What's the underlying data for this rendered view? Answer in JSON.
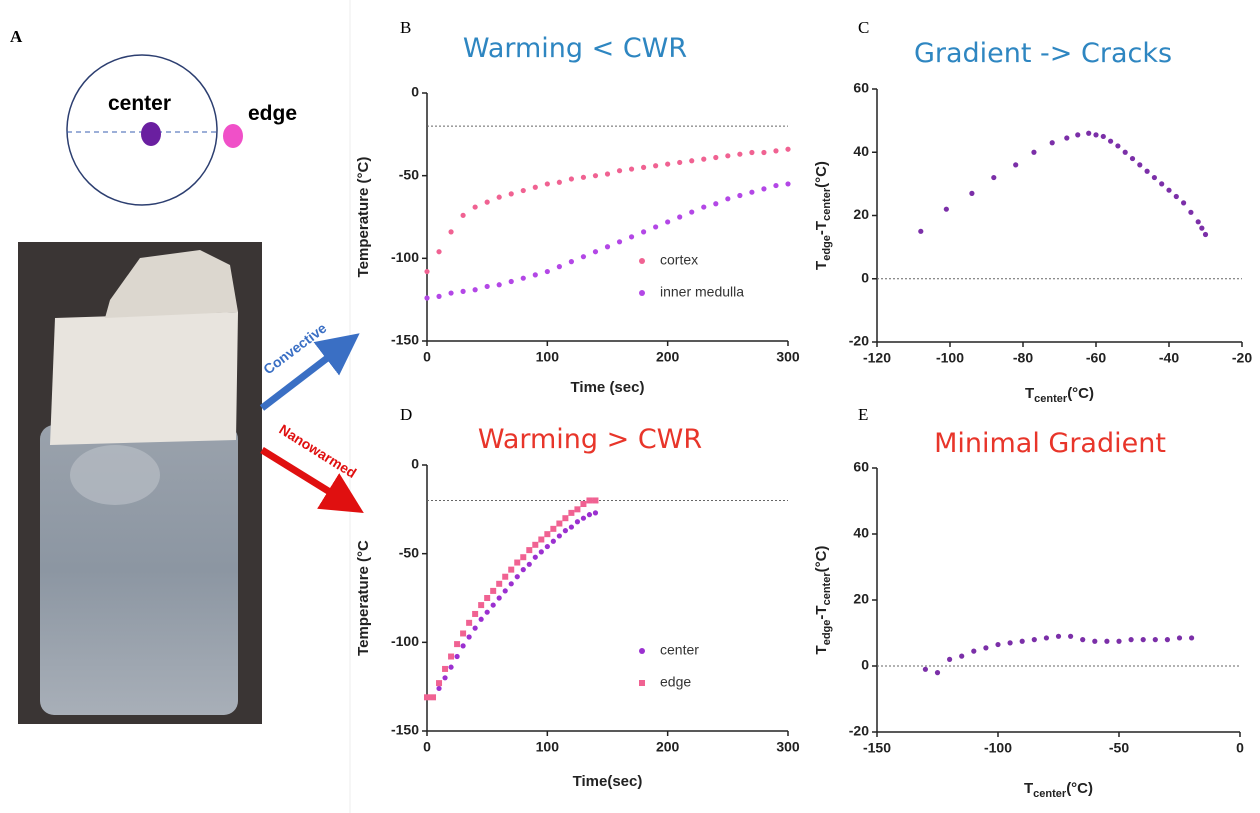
{
  "panel_a": {
    "label": "A",
    "center": "center",
    "edge": "edge",
    "convective": "Convective",
    "nanowarmed": "Nanowarmed"
  },
  "chart_data": [
    {
      "type": "scatter",
      "label": "B",
      "title": "Warming < CWR",
      "title_color": "#2e86c1",
      "xlabel": "Time (sec)",
      "ylabel": "Temperature (°C)",
      "xlim": [
        0,
        300
      ],
      "ylim": [
        -150,
        0
      ],
      "xticks": [
        0,
        100,
        200,
        300
      ],
      "yticks": [
        0,
        -50,
        -100,
        -150
      ],
      "hline": -20,
      "legend": "lower right",
      "x": [
        0,
        10,
        20,
        30,
        40,
        50,
        60,
        70,
        80,
        90,
        100,
        110,
        120,
        130,
        140,
        150,
        160,
        170,
        180,
        190,
        200,
        210,
        220,
        230,
        240,
        250,
        260,
        270,
        280,
        290,
        300
      ],
      "series": [
        {
          "name": "cortex",
          "color": "#f06292",
          "marker": "circle",
          "values": [
            -108,
            -96,
            -84,
            -74,
            -69,
            -66,
            -63,
            -61,
            -59,
            -57,
            -55,
            -54,
            -52,
            -51,
            -50,
            -49,
            -47,
            -46,
            -45,
            -44,
            -43,
            -42,
            -41,
            -40,
            -39,
            -38,
            -37,
            -36,
            -36,
            -35,
            -34
          ]
        },
        {
          "name": "inner medulla",
          "color": "#b347e6",
          "marker": "circle",
          "values": [
            -124,
            -123,
            -121,
            -120,
            -119,
            -117,
            -116,
            -114,
            -112,
            -110,
            -108,
            -105,
            -102,
            -99,
            -96,
            -93,
            -90,
            -87,
            -84,
            -81,
            -78,
            -75,
            -72,
            -69,
            -67,
            -64,
            -62,
            -60,
            -58,
            -56,
            -55
          ]
        }
      ]
    },
    {
      "type": "scatter",
      "label": "C",
      "title": "Gradient -> Cracks",
      "title_color": "#2e86c1",
      "xlabel": [
        "T",
        "center",
        "(°C)"
      ],
      "ylabel": [
        "T",
        "edge",
        "-T",
        "center",
        "(°C)"
      ],
      "xlim": [
        -120,
        -20
      ],
      "ylim": [
        -20,
        60
      ],
      "xticks": [
        -120,
        -100,
        -80,
        -60,
        -40,
        -20
      ],
      "yticks": [
        -20,
        0,
        20,
        40,
        60
      ],
      "hline": 0,
      "x": [
        -108,
        -101,
        -94,
        -88,
        -82,
        -77,
        -72,
        -68,
        -65,
        -62,
        -60,
        -58,
        -56,
        -54,
        -52,
        -50,
        -48,
        -46,
        -44,
        -42,
        -40,
        -38,
        -36,
        -34,
        -32,
        -31,
        -30
      ],
      "series": [
        {
          "name": null,
          "color": "#7b2fa8",
          "marker": "circle",
          "values": [
            15,
            22,
            27,
            32,
            36,
            40,
            43,
            44.5,
            45.5,
            46,
            45.5,
            45,
            43.5,
            42,
            40,
            38,
            36,
            34,
            32,
            30,
            28,
            26,
            24,
            21,
            18,
            16,
            14
          ]
        }
      ]
    },
    {
      "type": "scatter",
      "label": "D",
      "title": "Warming > CWR",
      "title_color": "#e8352a",
      "xlabel": "Time(sec)",
      "ylabel": "Temperature (°C",
      "xlim": [
        0,
        300
      ],
      "ylim": [
        -150,
        0
      ],
      "xticks": [
        0,
        100,
        200,
        300
      ],
      "yticks": [
        0,
        -50,
        -100,
        -150
      ],
      "hline": -20,
      "legend": "lower right",
      "x": [
        0,
        5,
        10,
        15,
        20,
        25,
        30,
        35,
        40,
        45,
        50,
        55,
        60,
        65,
        70,
        75,
        80,
        85,
        90,
        95,
        100,
        105,
        110,
        115,
        120,
        125,
        130,
        135,
        140
      ],
      "series": [
        {
          "name": "center",
          "color": "#9b30d0",
          "marker": "circle",
          "values": [
            -131,
            -131,
            -126,
            -120,
            -114,
            -108,
            -102,
            -97,
            -92,
            -87,
            -83,
            -79,
            -75,
            -71,
            -67,
            -63,
            -59,
            -56,
            -52,
            -49,
            -46,
            -43,
            -40,
            -37,
            -35,
            -32,
            -30,
            -28,
            -27
          ]
        },
        {
          "name": "edge",
          "color": "#f06292",
          "marker": "square",
          "values": [
            -131,
            -131,
            -123,
            -115,
            -108,
            -101,
            -95,
            -89,
            -84,
            -79,
            -75,
            -71,
            -67,
            -63,
            -59,
            -55,
            -52,
            -48,
            -45,
            -42,
            -39,
            -36,
            -33,
            -30,
            -27,
            -25,
            -22,
            -20,
            -20
          ]
        }
      ]
    },
    {
      "type": "scatter",
      "label": "E",
      "title": "Minimal Gradient",
      "title_color": "#e8352a",
      "xlabel": [
        "T",
        "center",
        "(°C)"
      ],
      "ylabel": [
        "T",
        "edge",
        "-T",
        "center",
        "(°C)"
      ],
      "xlim": [
        -150,
        0
      ],
      "ylim": [
        -20,
        60
      ],
      "xticks": [
        -150,
        -100,
        -50,
        0
      ],
      "yticks": [
        -20,
        0,
        20,
        40,
        60
      ],
      "hline": 0,
      "x": [
        -130,
        -125,
        -120,
        -115,
        -110,
        -105,
        -100,
        -95,
        -90,
        -85,
        -80,
        -75,
        -70,
        -65,
        -60,
        -55,
        -50,
        -45,
        -40,
        -35,
        -30,
        -25,
        -20
      ],
      "series": [
        {
          "name": null,
          "color": "#7b2fa8",
          "marker": "circle",
          "values": [
            -1,
            -2,
            2,
            3,
            4.5,
            5.5,
            6.5,
            7,
            7.5,
            8,
            8.5,
            9,
            9,
            8,
            7.5,
            7.5,
            7.5,
            8,
            8,
            8,
            8,
            8.5,
            8.5
          ]
        }
      ]
    }
  ]
}
